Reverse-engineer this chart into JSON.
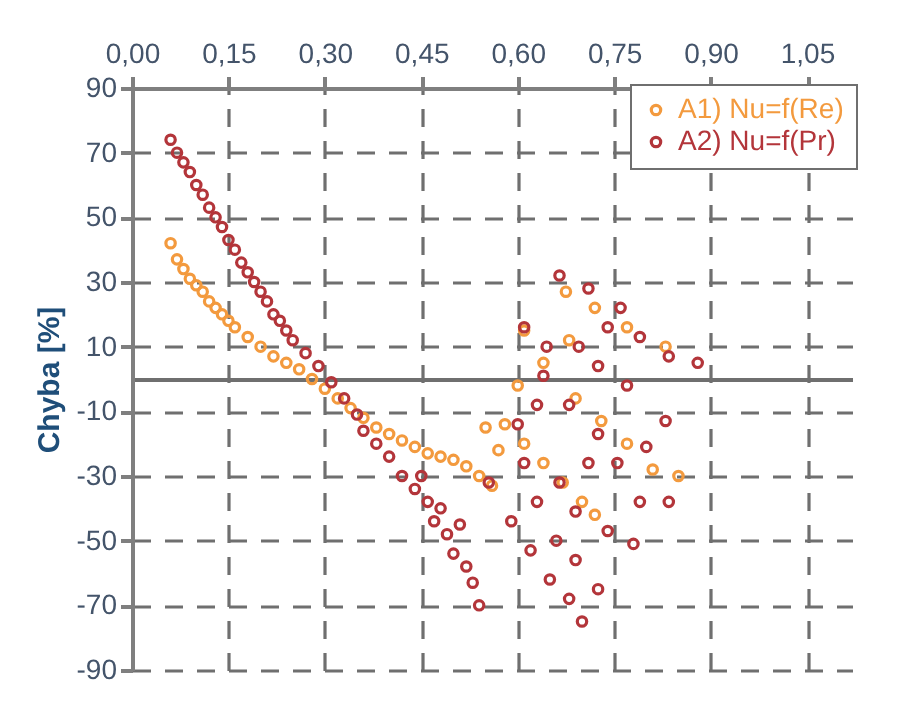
{
  "chart_data": {
    "type": "scatter",
    "ylabel": "Chyba [%]",
    "xlim": [
      0,
      1.12
    ],
    "xticks": [
      {
        "value": 0,
        "label": "0,00"
      },
      {
        "value": 0.15,
        "label": "0,15"
      },
      {
        "value": 0.3,
        "label": "0,30"
      },
      {
        "value": 0.45,
        "label": "0,45"
      },
      {
        "value": 0.6,
        "label": "0,60"
      },
      {
        "value": 0.75,
        "label": "0,75"
      },
      {
        "value": 0.9,
        "label": "0,90"
      },
      {
        "value": 1.05,
        "label": "1,05"
      }
    ],
    "ylim": [
      -90,
      90
    ],
    "yticks": [
      -90,
      -70,
      -50,
      -30,
      -10,
      10,
      30,
      50,
      70,
      90
    ],
    "grid": true,
    "legend": "top right",
    "marker": "circle",
    "series": [
      {
        "name": "A1) Nu=f(Re)",
        "color": "#f39a3e",
        "x": [
          0.06,
          0.07,
          0.08,
          0.09,
          0.1,
          0.11,
          0.12,
          0.13,
          0.14,
          0.15,
          0.16,
          0.18,
          0.2,
          0.22,
          0.24,
          0.26,
          0.28,
          0.3,
          0.32,
          0.34,
          0.36,
          0.38,
          0.4,
          0.42,
          0.44,
          0.46,
          0.48,
          0.5,
          0.52,
          0.54,
          0.56,
          0.55,
          0.57,
          0.58,
          0.61,
          0.64,
          0.67,
          0.7,
          0.72,
          0.69,
          0.73,
          0.77,
          0.81,
          0.675,
          0.72,
          0.77,
          0.83,
          0.6,
          0.64,
          0.68,
          0.61,
          0.85
        ],
        "values": [
          42,
          37,
          34,
          31,
          29,
          27,
          24,
          22,
          20,
          18,
          16,
          13,
          10,
          7,
          5,
          3,
          0,
          -3,
          -6,
          -9,
          -12,
          -15,
          -17,
          -19,
          -21,
          -23,
          -24,
          -25,
          -27,
          -30,
          -33,
          -15,
          -22,
          -14,
          -20,
          -26,
          -32,
          -38,
          -42,
          -6,
          -13,
          -20,
          -28,
          27,
          22,
          16,
          10,
          -2,
          5,
          12,
          15,
          -30
        ]
      },
      {
        "name": "A2) Nu=f(Pr)",
        "color": "#b3353a",
        "x": [
          0.06,
          0.07,
          0.08,
          0.09,
          0.1,
          0.11,
          0.12,
          0.13,
          0.14,
          0.15,
          0.16,
          0.17,
          0.18,
          0.19,
          0.2,
          0.21,
          0.22,
          0.23,
          0.24,
          0.25,
          0.27,
          0.29,
          0.31,
          0.33,
          0.35,
          0.36,
          0.38,
          0.4,
          0.42,
          0.44,
          0.46,
          0.47,
          0.49,
          0.5,
          0.52,
          0.53,
          0.54,
          0.45,
          0.48,
          0.51,
          0.665,
          0.71,
          0.76,
          0.79,
          0.835,
          0.88,
          0.61,
          0.64,
          0.68,
          0.725,
          0.755,
          0.79,
          0.835,
          0.83,
          0.555,
          0.59,
          0.62,
          0.65,
          0.68,
          0.7,
          0.66,
          0.63,
          0.69,
          0.725,
          0.61,
          0.665,
          0.69,
          0.74,
          0.78,
          0.8,
          0.725,
          0.695,
          0.645,
          0.74,
          0.77,
          0.71,
          0.63,
          0.6
        ],
        "values": [
          74,
          70,
          67,
          64,
          60,
          57,
          53,
          50,
          47,
          43,
          40,
          36,
          33,
          30,
          27,
          24,
          20,
          18,
          15,
          12,
          8,
          4,
          -1,
          -6,
          -11,
          -16,
          -20,
          -24,
          -30,
          -34,
          -38,
          -44,
          -48,
          -54,
          -58,
          -63,
          -70,
          -30,
          -40,
          -45,
          32,
          28,
          22,
          13,
          7,
          5,
          16,
          1,
          -8,
          -17,
          -26,
          -38,
          -38,
          -13,
          -32,
          -44,
          -53,
          -62,
          -68,
          -75,
          -50,
          -38,
          -56,
          -65,
          -26,
          -32,
          -41,
          -47,
          -51,
          -21,
          4,
          10,
          10,
          16,
          -2,
          -26,
          -8,
          -14
        ]
      }
    ]
  }
}
